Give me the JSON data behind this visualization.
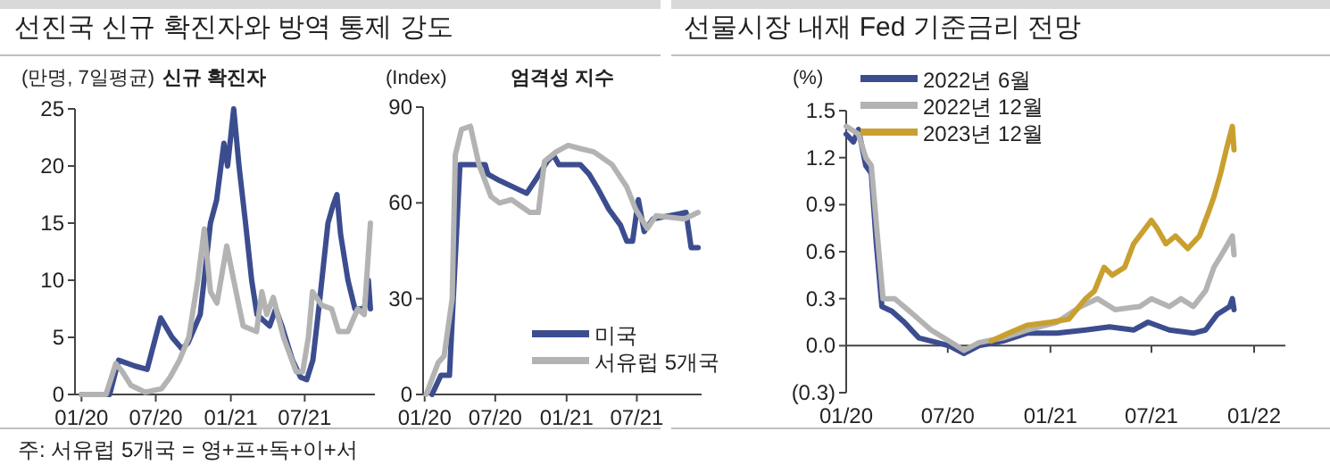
{
  "chart_data": [
    {
      "type": "line",
      "title": "선진국 신규 확진자와 방역 통제 강도",
      "subtitle": "신규 확진자",
      "ylabel": "(만명, 7일평균)",
      "annotations": [
        "주: 서유럽 5개국 = 영+프+독+이+서"
      ],
      "xlim": [
        "2019-12-16",
        "2021-12-20"
      ],
      "xticks": [
        {
          "value": "2020-01-01",
          "label": "01/20"
        },
        {
          "value": "2020-07-01",
          "label": "07/20"
        },
        {
          "value": "2021-01-01",
          "label": "01/21"
        },
        {
          "value": "2021-07-01",
          "label": "07/21"
        }
      ],
      "ylim": [
        0,
        25
      ],
      "yticks": [
        0,
        5,
        10,
        15,
        20,
        25
      ],
      "legend": false,
      "series": [
        {
          "color": "#3c4d8f",
          "x": [
            "2020-01-01",
            "2020-03-10",
            "2020-04-01",
            "2020-05-10",
            "2020-06-10",
            "2020-07-13",
            "2020-08-10",
            "2020-09-03",
            "2020-09-18",
            "2020-10-18",
            "2020-11-12",
            "2020-11-27",
            "2020-12-15",
            "2020-12-24",
            "2021-01-08",
            "2021-01-21",
            "2021-02-06",
            "2021-02-21",
            "2021-03-06",
            "2021-03-21",
            "2021-04-06",
            "2021-04-21",
            "2021-05-06",
            "2021-06-01",
            "2021-06-21",
            "2021-07-06",
            "2021-07-21",
            "2021-08-06",
            "2021-08-27",
            "2021-09-08",
            "2021-09-18",
            "2021-09-27",
            "2021-10-15",
            "2021-11-01",
            "2021-11-24",
            "2021-12-04",
            "2021-12-09"
          ],
          "values": [
            0,
            0,
            3,
            2.5,
            2.2,
            6.7,
            5,
            4,
            4.5,
            7,
            15,
            17,
            22,
            20,
            25,
            20,
            15,
            10,
            7,
            6.5,
            6,
            7.5,
            6,
            3,
            1.5,
            1.3,
            3,
            8,
            15,
            16.5,
            17.5,
            14,
            10,
            7.5,
            7.5,
            10,
            7.5
          ]
        },
        {
          "color": "#b3b3b3",
          "x": [
            "2020-01-01",
            "2020-03-01",
            "2020-03-25",
            "2020-04-10",
            "2020-05-01",
            "2020-06-05",
            "2020-07-15",
            "2020-08-05",
            "2020-08-28",
            "2020-09-20",
            "2020-10-12",
            "2020-10-28",
            "2020-11-12",
            "2020-11-28",
            "2020-12-22",
            "2021-01-08",
            "2021-01-31",
            "2021-03-05",
            "2021-03-18",
            "2021-03-30",
            "2021-04-15",
            "2021-05-10",
            "2021-06-10",
            "2021-06-26",
            "2021-07-10",
            "2021-07-20",
            "2021-08-12",
            "2021-09-05",
            "2021-09-22",
            "2021-10-15",
            "2021-11-08",
            "2021-11-24",
            "2021-12-09"
          ],
          "values": [
            0,
            0,
            2.7,
            2,
            0.8,
            0.2,
            0.5,
            1.5,
            3,
            5,
            10,
            14.5,
            9,
            8,
            13,
            10,
            6,
            5.5,
            9,
            7,
            8.5,
            5,
            2,
            2,
            5,
            9,
            7.8,
            7.5,
            5.5,
            5.5,
            7.5,
            7,
            15
          ]
        }
      ]
    },
    {
      "type": "line",
      "subtitle": "엄격성 지수",
      "ylabel": "(Index)",
      "xlim": [
        "2019-12-28",
        "2021-12-15"
      ],
      "xticks": [
        {
          "value": "2020-01-01",
          "label": "01/20"
        },
        {
          "value": "2020-07-01",
          "label": "07/20"
        },
        {
          "value": "2021-01-01",
          "label": "01/21"
        },
        {
          "value": "2021-07-01",
          "label": "07/21"
        }
      ],
      "ylim": [
        0,
        90
      ],
      "yticks": [
        0,
        30,
        60,
        90
      ],
      "legend": "bottom right",
      "series": [
        {
          "name": "미국",
          "color": "#3c4d8f",
          "x": [
            "2020-01-20",
            "2020-02-12",
            "2020-03-05",
            "2020-04-01",
            "2020-06-05",
            "2020-06-12",
            "2020-07-12",
            "2020-09-20",
            "2020-10-12",
            "2020-11-12",
            "2020-11-28",
            "2020-12-12",
            "2021-02-05",
            "2021-02-28",
            "2021-03-20",
            "2021-04-20",
            "2021-05-20",
            "2021-06-05",
            "2021-06-20",
            "2021-07-05",
            "2021-07-20",
            "2021-08-12",
            "2021-11-05",
            "2021-11-18",
            "2021-12-06"
          ],
          "values": [
            0,
            6,
            6,
            72,
            72,
            69,
            67,
            63,
            67,
            73,
            75,
            72,
            72,
            69,
            65,
            58,
            53,
            48,
            48,
            61,
            51,
            55,
            57,
            46,
            46
          ]
        },
        {
          "name": "서유럽 5개국",
          "color": "#b3b3b3",
          "x": [
            "2020-01-05",
            "2020-02-05",
            "2020-02-20",
            "2020-03-12",
            "2020-03-20",
            "2020-04-05",
            "2020-04-28",
            "2020-05-20",
            "2020-06-20",
            "2020-07-12",
            "2020-08-12",
            "2020-09-28",
            "2020-10-20",
            "2020-11-05",
            "2020-12-05",
            "2021-01-05",
            "2021-02-05",
            "2021-03-12",
            "2021-04-28",
            "2021-06-05",
            "2021-06-28",
            "2021-07-28",
            "2021-08-20",
            "2021-11-01",
            "2021-12-06"
          ],
          "values": [
            0,
            10,
            12,
            30,
            75,
            83,
            84,
            72,
            62,
            60,
            61,
            57,
            57,
            73,
            76,
            78,
            77,
            76,
            72,
            65,
            58,
            52,
            56,
            55,
            57
          ]
        }
      ]
    },
    {
      "type": "line",
      "title": "선물시장 내재 Fed 기준금리 전망",
      "ylabel": "(%)",
      "xlim": [
        "2020-01-01",
        "2022-02-26"
      ],
      "xticks": [
        {
          "value": "2020-01-01",
          "label": "01/20"
        },
        {
          "value": "2020-07-01",
          "label": "07/20"
        },
        {
          "value": "2021-01-01",
          "label": "01/21"
        },
        {
          "value": "2021-07-01",
          "label": "07/21"
        },
        {
          "value": "2022-01-01",
          "label": "01/22"
        }
      ],
      "ylim": [
        -0.3,
        1.5
      ],
      "yticks": [
        {
          "value": -0.3,
          "label": "(0.3)"
        },
        {
          "value": 0,
          "label": "0.0"
        },
        0.3,
        0.6,
        0.9,
        1.2,
        1.5
      ],
      "legend": "top left",
      "series": [
        {
          "name": "2022년 6월",
          "color": "#3c4d8f",
          "x": [
            "2020-01-01",
            "2020-01-14",
            "2020-01-23",
            "2020-02-05",
            "2020-02-15",
            "2020-02-24",
            "2020-03-05",
            "2020-03-23",
            "2020-04-14",
            "2020-05-10",
            "2020-06-12",
            "2020-07-03",
            "2020-07-30",
            "2020-08-26",
            "2020-10-08",
            "2020-11-20",
            "2021-01-13",
            "2021-03-05",
            "2021-04-17",
            "2021-05-30",
            "2021-06-25",
            "2021-08-02",
            "2021-09-14",
            "2021-10-06",
            "2021-10-27",
            "2021-11-18",
            "2021-11-23",
            "2021-11-26"
          ],
          "values": [
            1.35,
            1.3,
            1.38,
            1.15,
            1.1,
            0.65,
            0.25,
            0.22,
            0.15,
            0.05,
            0.02,
            0,
            -0.05,
            0,
            0.03,
            0.08,
            0.08,
            0.1,
            0.12,
            0.1,
            0.15,
            0.1,
            0.08,
            0.1,
            0.2,
            0.25,
            0.3,
            0.23
          ]
        },
        {
          "name": "2022년 12월",
          "color": "#b3b3b3",
          "x": [
            "2020-01-01",
            "2020-01-23",
            "2020-02-05",
            "2020-02-15",
            "2020-02-26",
            "2020-03-07",
            "2020-03-28",
            "2020-04-30",
            "2020-06-01",
            "2020-07-03",
            "2020-07-30",
            "2020-08-26",
            "2020-10-08",
            "2020-11-20",
            "2021-01-13",
            "2021-02-24",
            "2021-03-26",
            "2021-04-27",
            "2021-06-10",
            "2021-07-01",
            "2021-08-02",
            "2021-08-23",
            "2021-09-14",
            "2021-10-06",
            "2021-10-21",
            "2021-11-07",
            "2021-11-23",
            "2021-11-26"
          ],
          "values": [
            1.4,
            1.35,
            1.2,
            1.15,
            0.7,
            0.3,
            0.3,
            0.2,
            0.1,
            0.03,
            -0.03,
            0.02,
            0.05,
            0.1,
            0.15,
            0.25,
            0.3,
            0.23,
            0.25,
            0.3,
            0.25,
            0.3,
            0.25,
            0.35,
            0.5,
            0.6,
            0.7,
            0.58
          ]
        },
        {
          "name": "2023년 12월",
          "color": "#c9a030",
          "x": [
            "2020-09-17",
            "2020-10-18",
            "2020-11-20",
            "2021-01-02",
            "2021-02-03",
            "2021-03-05",
            "2021-03-21",
            "2021-04-07",
            "2021-04-22",
            "2021-05-14",
            "2021-05-30",
            "2021-07-01",
            "2021-07-11",
            "2021-07-27",
            "2021-08-13",
            "2021-09-04",
            "2021-09-25",
            "2021-10-11",
            "2021-10-21",
            "2021-11-02",
            "2021-11-12",
            "2021-11-23",
            "2021-11-26"
          ],
          "values": [
            0.03,
            0.08,
            0.13,
            0.15,
            0.17,
            0.3,
            0.35,
            0.5,
            0.45,
            0.5,
            0.65,
            0.8,
            0.75,
            0.65,
            0.7,
            0.62,
            0.7,
            0.85,
            0.95,
            1.1,
            1.25,
            1.4,
            1.25
          ]
        }
      ]
    }
  ]
}
